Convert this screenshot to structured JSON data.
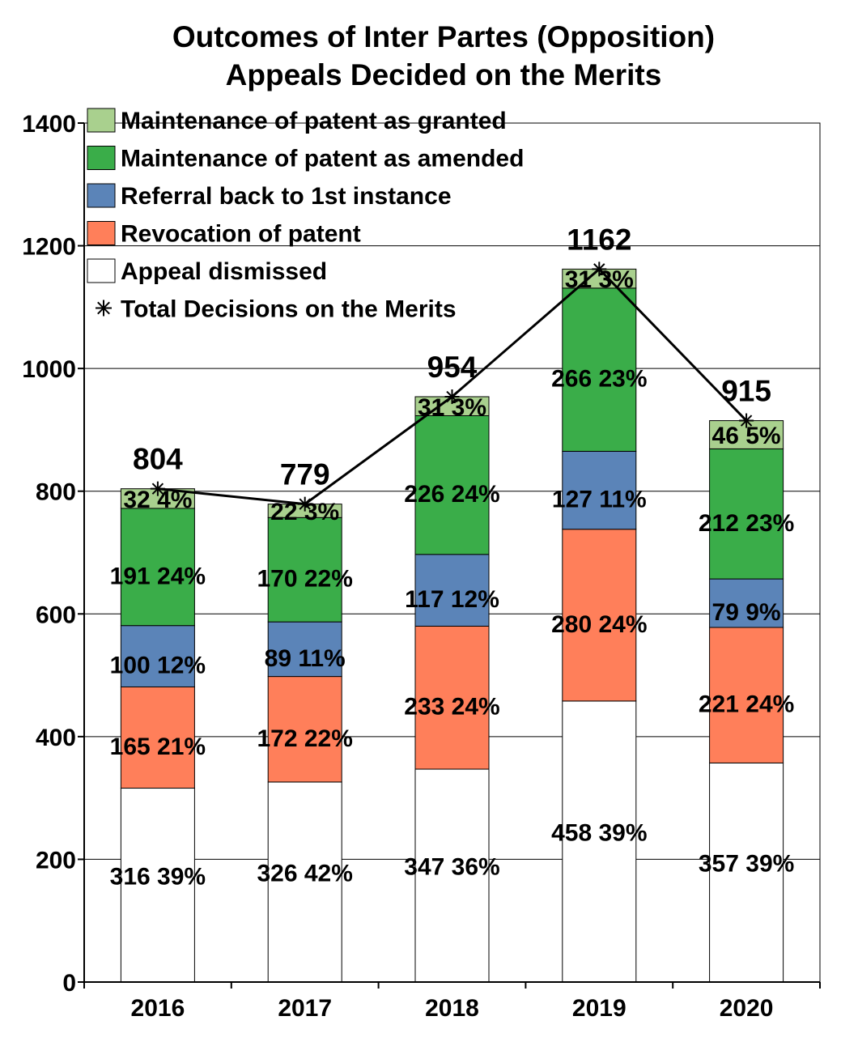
{
  "chart_data": {
    "type": "bar",
    "stacked": true,
    "title": [
      "Outcomes of Inter Partes (Opposition)",
      "Appeals Decided on the Merits"
    ],
    "xlabel": "",
    "ylabel": "",
    "ylim": [
      0,
      1400
    ],
    "yticks": [
      "0",
      "200",
      "400",
      "600",
      "800",
      "1000",
      "1200",
      "1400"
    ],
    "ytick_values": [
      0,
      200,
      400,
      600,
      800,
      1000,
      1200,
      1400
    ],
    "grid": true,
    "legend_position": "top-left",
    "categories": [
      "2016",
      "2017",
      "2018",
      "2019",
      "2020"
    ],
    "series": [
      {
        "name": "Appeal dismissed",
        "color": "#ffffff",
        "values": [
          316,
          326,
          347,
          458,
          357
        ],
        "labels": [
          "316 39%",
          "326 42%",
          "347 36%",
          "458 39%",
          "357 39%"
        ]
      },
      {
        "name": "Revocation of patent",
        "color": "#ff7f5a",
        "values": [
          165,
          172,
          233,
          280,
          221
        ],
        "labels": [
          "165 21%",
          "172 22%",
          "233 24%",
          "280 24%",
          "221 24%"
        ]
      },
      {
        "name": "Referral back to 1st instance",
        "color": "#5b84b8",
        "values": [
          100,
          89,
          117,
          127,
          79
        ],
        "labels": [
          "100 12%",
          "89 11%",
          "117 12%",
          "127 11%",
          "79 9%"
        ]
      },
      {
        "name": "Maintenance of patent as amended",
        "color": "#3aad49",
        "values": [
          191,
          170,
          226,
          266,
          212
        ],
        "labels": [
          "191 24%",
          "170 22%",
          "226 24%",
          "266 23%",
          "212 23%"
        ]
      },
      {
        "name": "Maintenance of patent as granted",
        "color": "#a9d08e",
        "values": [
          32,
          22,
          31,
          31,
          46
        ],
        "labels": [
          "32 4%",
          "22 3%",
          "31 3%",
          "31 3%",
          "46 5%"
        ]
      }
    ],
    "line_series": {
      "name": "Total Decisions on the Merits",
      "color": "#000000",
      "values": [
        804,
        779,
        954,
        1162,
        915
      ],
      "labels": [
        "804",
        "779",
        "954",
        "1162",
        "915"
      ]
    },
    "legend_order": [
      "Maintenance of patent as granted",
      "Maintenance of patent as amended",
      "Referral back to 1st instance",
      "Revocation of patent",
      "Appeal dismissed",
      "Total Decisions on the Merits"
    ]
  }
}
